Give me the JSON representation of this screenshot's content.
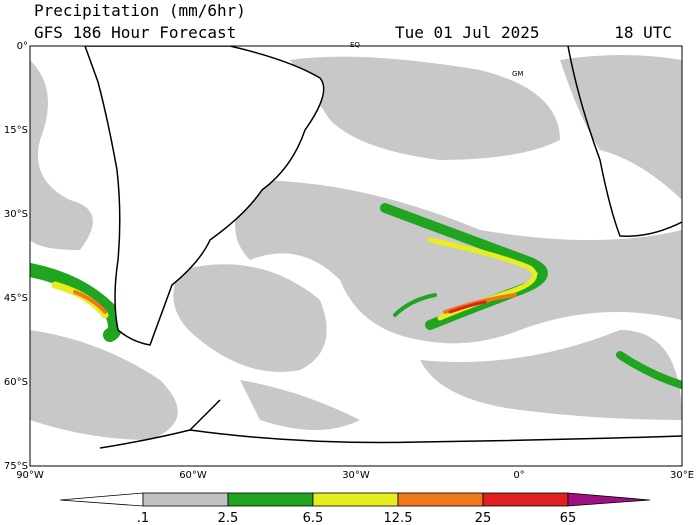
{
  "header": {
    "title": "Precipitation (mm/6hr)",
    "subtitle": "GFS 186 Hour Forecast",
    "date": "Tue 01 Jul 2025",
    "time": "18 UTC"
  },
  "map": {
    "lat_labels": [
      "0°",
      "15°S",
      "30°S",
      "45°S",
      "60°S",
      "75°S"
    ],
    "lon_labels": [
      "90°W",
      "60°W",
      "30°W",
      "0°",
      "30°E"
    ],
    "markers": [
      "EQ",
      "GM"
    ]
  },
  "colorbar": {
    "labels": [
      ".1",
      "2.5",
      "6.5",
      "12.5",
      "25",
      "65"
    ]
  }
}
